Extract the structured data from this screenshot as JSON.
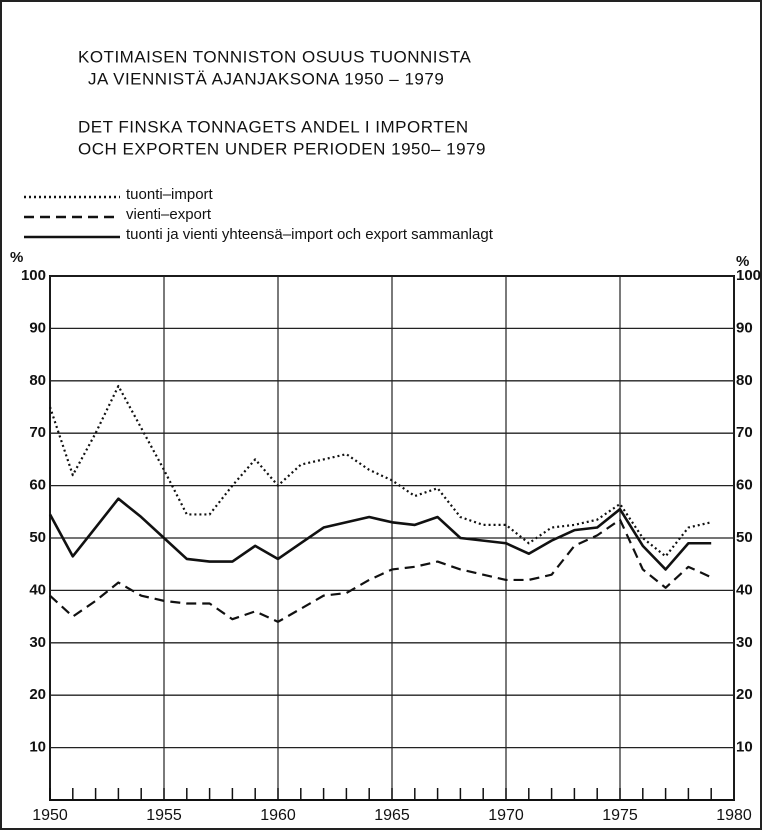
{
  "chart_data": {
    "type": "line",
    "title": [
      "KOTIMAISEN TONNISTON OSUUS TUONNISTA",
      "JA VIENNISTÄ AJANJAKSONA 1950 – 1979"
    ],
    "subtitle": [
      "DET FINSKA TONNAGETS ANDEL I IMPORTEN",
      "OCH EXPORTEN UNDER PERIODEN 1950– 1979"
    ],
    "ylabel": "%",
    "y2label": "%",
    "x": [
      1950,
      1951,
      1952,
      1953,
      1954,
      1955,
      1956,
      1957,
      1958,
      1959,
      1960,
      1961,
      1962,
      1963,
      1964,
      1965,
      1966,
      1967,
      1968,
      1969,
      1970,
      1971,
      1972,
      1973,
      1974,
      1975,
      1976,
      1977,
      1978,
      1979
    ],
    "series": [
      {
        "name": "tuonti–import",
        "color": "#111111",
        "style": "dotted",
        "values": [
          75,
          62,
          70,
          79,
          71,
          63,
          54.5,
          54.5,
          60,
          65,
          60,
          64,
          65,
          66,
          63,
          61,
          58,
          59.5,
          54,
          52.5,
          52.5,
          49,
          52,
          52.5,
          53.5,
          56.5,
          50,
          46.5,
          52,
          53
        ]
      },
      {
        "name": "vienti–export",
        "color": "#111111",
        "style": "dashed",
        "values": [
          39,
          35,
          38,
          41.5,
          39,
          38,
          37.5,
          37.5,
          34.5,
          36,
          34,
          36.5,
          39,
          39.5,
          42,
          44,
          44.5,
          45.5,
          44,
          43,
          42,
          42,
          43,
          48.5,
          50.5,
          53.5,
          44,
          40.5,
          44.5,
          42.5
        ]
      },
      {
        "name": "tuonti ja vienti yhteensä–import och export sammanlagt",
        "color": "#111111",
        "style": "solid",
        "values": [
          54.5,
          46.5,
          52,
          57.5,
          54,
          50,
          46,
          45.5,
          45.5,
          48.5,
          46,
          49,
          52,
          53,
          54,
          53,
          52.5,
          54,
          50,
          49.5,
          49,
          47,
          49.5,
          51.5,
          52,
          55.5,
          48.5,
          44,
          49,
          49
        ]
      }
    ],
    "xlim": [
      1950,
      1980
    ],
    "xticks": [
      1950,
      1955,
      1960,
      1965,
      1970,
      1975,
      1980
    ],
    "ylim": [
      0,
      100
    ],
    "yticks": [
      10,
      20,
      30,
      40,
      50,
      60,
      70,
      80,
      90,
      100
    ],
    "y2lim": [
      0,
      100
    ],
    "y2ticks": [
      10,
      20,
      30,
      40,
      50,
      60,
      70,
      80,
      90,
      100
    ],
    "grid": true,
    "legend": "top-left"
  }
}
